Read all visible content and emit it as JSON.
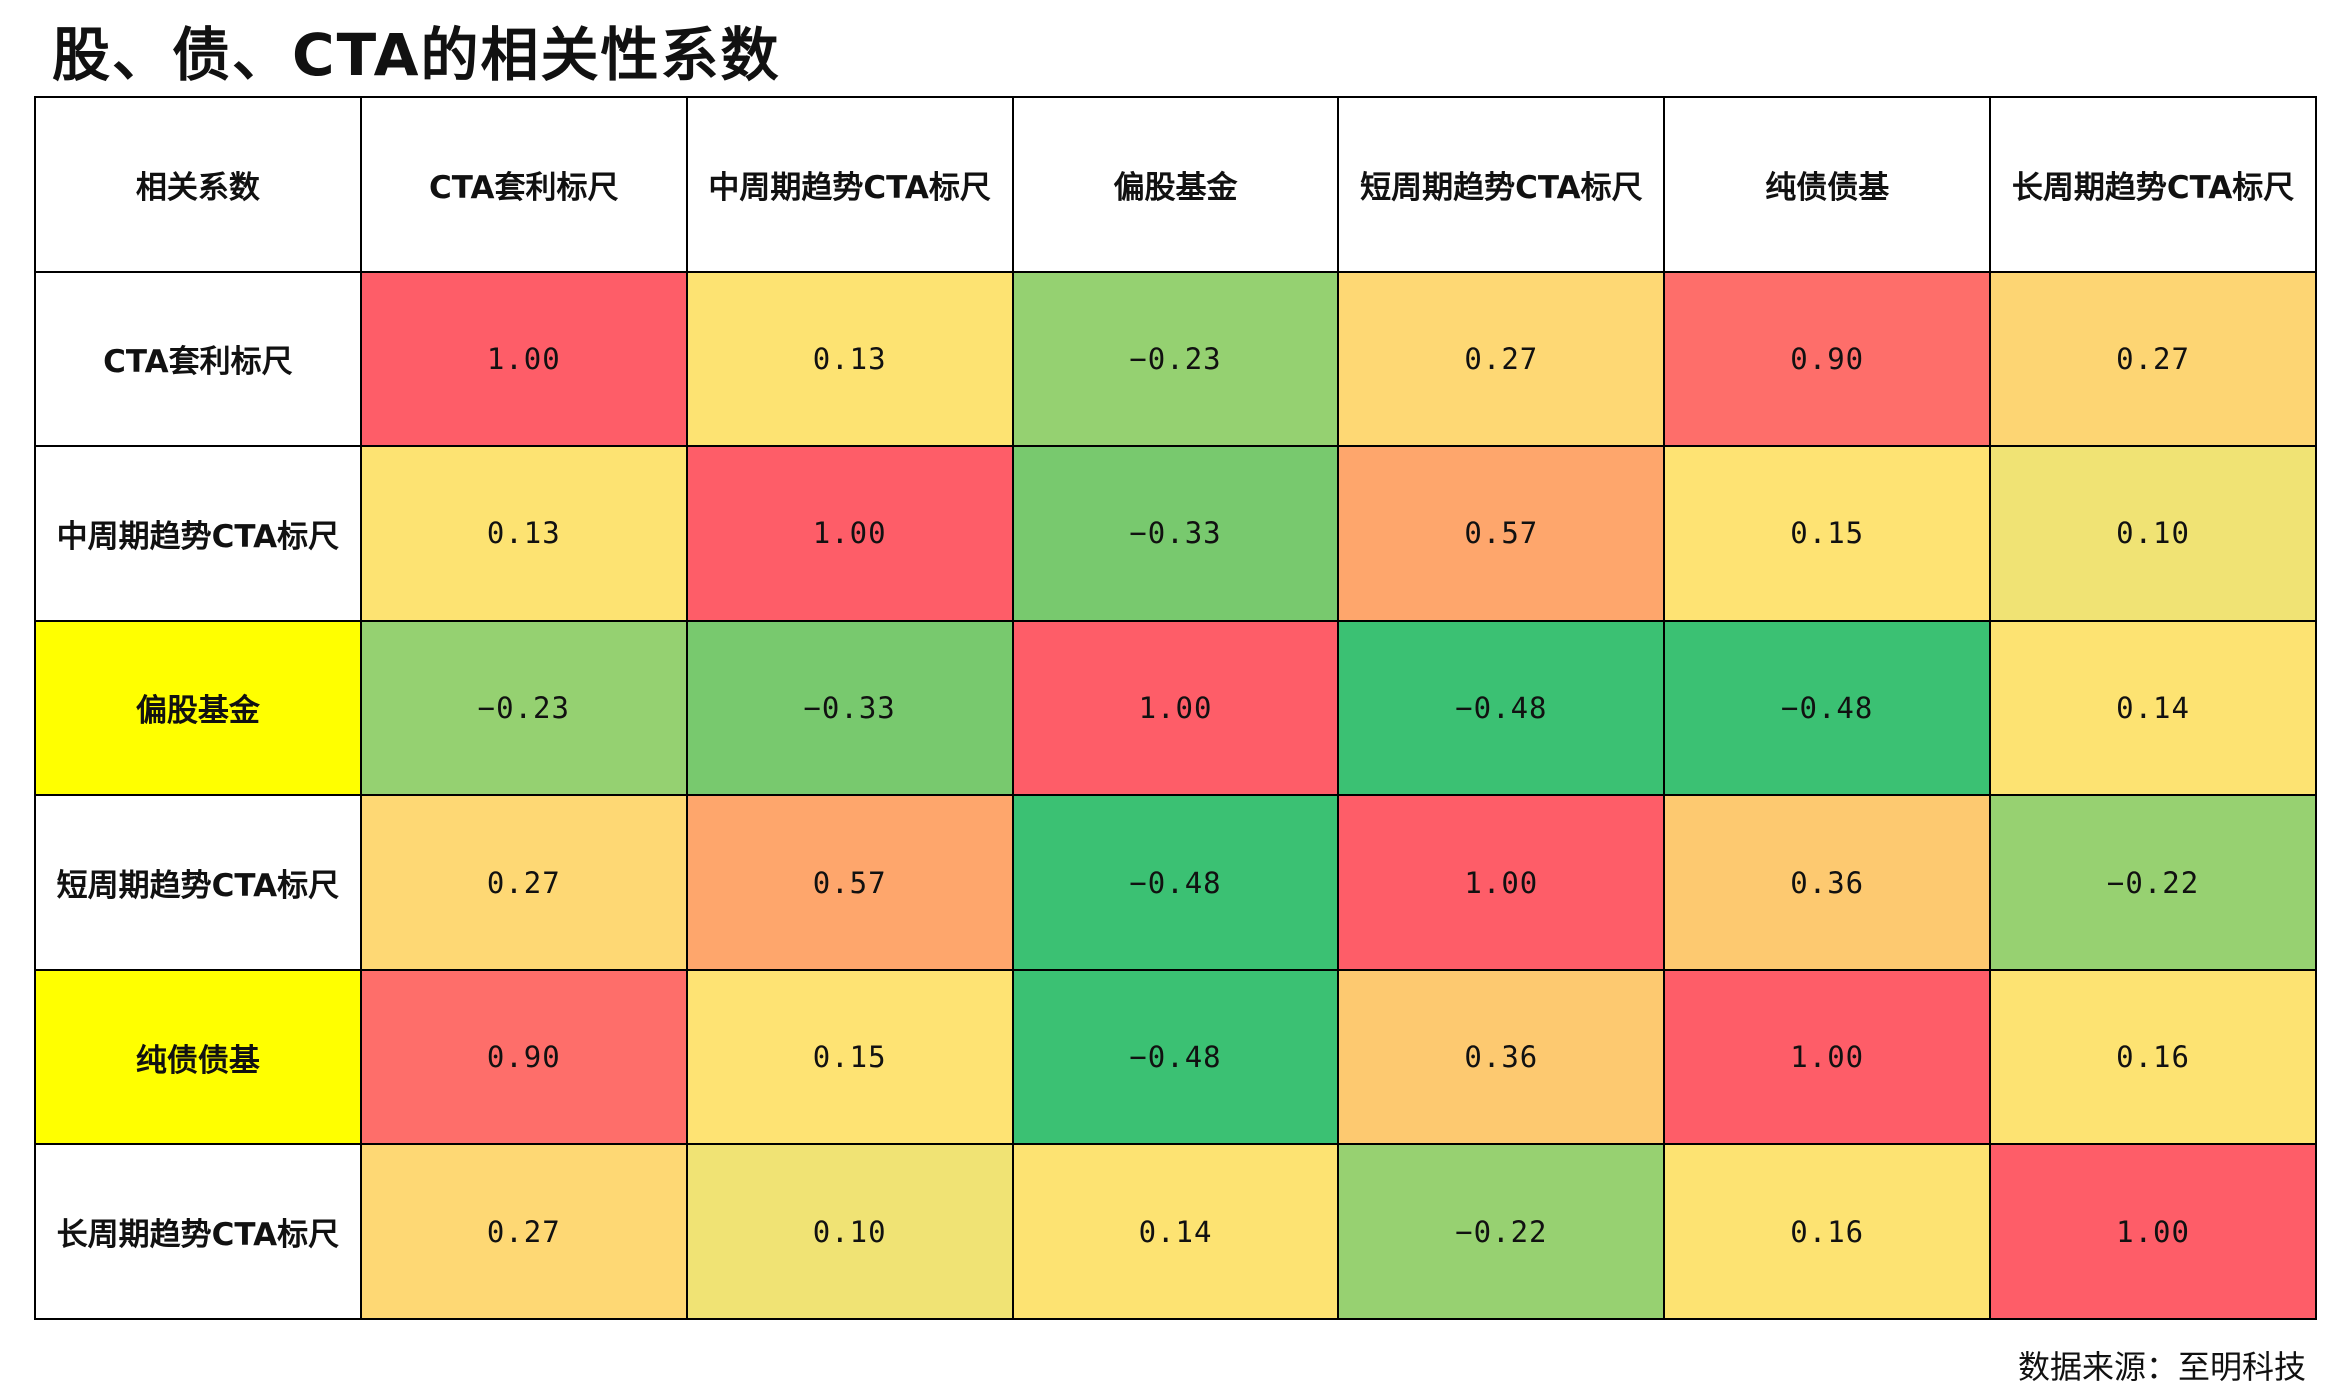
{
  "title": "股、债、CTA的相关性系数",
  "source": "数据来源：至明科技",
  "highlight_color": "#ffff00",
  "chart_data": {
    "type": "heatmap",
    "title": "股、债、CTA的相关性系数",
    "corner_label": "相关系数",
    "columns": [
      "CTA套利标尺",
      "中周期趋势CTA标尺",
      "偏股基金",
      "短周期趋势CTA标尺",
      "纯债债基",
      "长周期趋势CTA标尺"
    ],
    "rows": [
      "CTA套利标尺",
      "中周期趋势CTA标尺",
      "偏股基金",
      "短周期趋势CTA标尺",
      "纯债债基",
      "长周期趋势CTA标尺"
    ],
    "highlighted_rows": [
      "偏股基金",
      "纯债债基"
    ],
    "values": [
      [
        1.0,
        0.13,
        -0.23,
        0.27,
        0.9,
        0.27
      ],
      [
        0.13,
        1.0,
        -0.33,
        0.57,
        0.15,
        0.1
      ],
      [
        -0.23,
        -0.33,
        1.0,
        -0.48,
        -0.48,
        0.14
      ],
      [
        0.27,
        0.57,
        -0.48,
        1.0,
        0.36,
        -0.22
      ],
      [
        0.9,
        0.15,
        -0.48,
        0.36,
        1.0,
        0.16
      ],
      [
        0.27,
        0.1,
        0.14,
        -0.22,
        0.16,
        1.0
      ]
    ],
    "display_values": [
      [
        "1.00",
        "0.13",
        "−0.23",
        "0.27",
        "0.90",
        "0.27"
      ],
      [
        "0.13",
        "1.00",
        "−0.33",
        "0.57",
        "0.15",
        "0.10"
      ],
      [
        "−0.23",
        "−0.33",
        "1.00",
        "−0.48",
        "−0.48",
        "0.14"
      ],
      [
        "0.27",
        "0.57",
        "−0.48",
        "1.00",
        "0.36",
        "−0.22"
      ],
      [
        "0.90",
        "0.15",
        "−0.48",
        "0.36",
        "1.00",
        "0.16"
      ],
      [
        "0.27",
        "0.10",
        "0.14",
        "−0.22",
        "0.16",
        "1.00"
      ]
    ],
    "cell_colors": [
      [
        "#fe5d68",
        "#fde372",
        "#95d171",
        "#fed874",
        "#fe6e6a",
        "#fdd573"
      ],
      [
        "#fde372",
        "#fe5d68",
        "#78c96e",
        "#fea66c",
        "#fee373",
        "#f0e374"
      ],
      [
        "#95d171",
        "#78c96e",
        "#fe5d68",
        "#3bc173",
        "#3bc173",
        "#fde372"
      ],
      [
        "#fed874",
        "#fea66c",
        "#3bc173",
        "#fe5d68",
        "#fdc970",
        "#97d171"
      ],
      [
        "#fe6e6a",
        "#fee373",
        "#3bc173",
        "#fdc970",
        "#fe5d68",
        "#fde372"
      ],
      [
        "#fed874",
        "#f0e374",
        "#fde372",
        "#97d171",
        "#fde372",
        "#fe5d68"
      ]
    ]
  }
}
